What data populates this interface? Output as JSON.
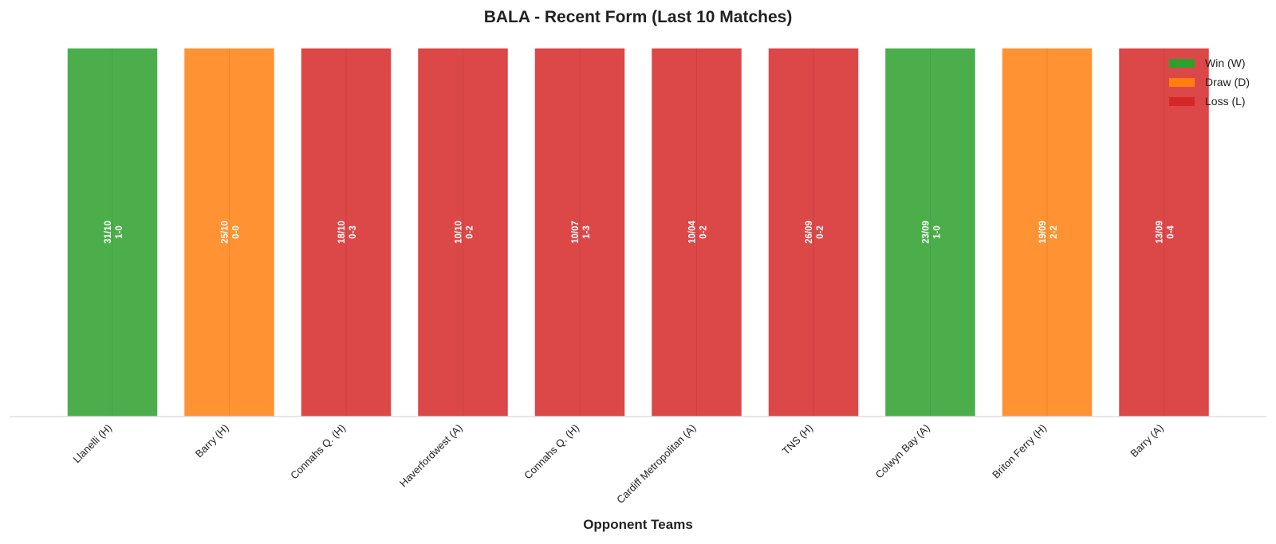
{
  "chart_data": {
    "type": "bar",
    "title": "BALA - Recent Form (Last 10 Matches)",
    "xlabel": "Opponent Teams",
    "ylabel": "",
    "ylim": [
      0,
      1
    ],
    "grid": false,
    "legend_position": "top-right",
    "categories": [
      "Llanelli (H)",
      "Barry (H)",
      "Connahs Q. (H)",
      "Haverfordwest (A)",
      "Connahs Q. (H)",
      "Cardiff Metropolitan (A)",
      "TNS (H)",
      "Colwyn Bay (A)",
      "Briton Ferry (H)",
      "Barry (A)"
    ],
    "values": [
      1,
      1,
      1,
      1,
      1,
      1,
      1,
      1,
      1,
      1
    ],
    "results": [
      "W",
      "D",
      "L",
      "L",
      "L",
      "L",
      "L",
      "W",
      "D",
      "L"
    ],
    "dates": [
      "31/10",
      "25/10",
      "18/10",
      "10/10",
      "10/07",
      "10/04",
      "26/09",
      "23/09",
      "19/09",
      "13/09"
    ],
    "scores": [
      "1-0",
      "0-0",
      "0-3",
      "0-2",
      "1-3",
      "0-2",
      "0-2",
      "1-0",
      "2-2",
      "0-4"
    ],
    "legend": [
      {
        "key": "W",
        "label": "Win (W)",
        "color": "#2ca02c"
      },
      {
        "key": "D",
        "label": "Draw (D)",
        "color": "#ff7f0e"
      },
      {
        "key": "L",
        "label": "Loss (L)",
        "color": "#d62728"
      }
    ]
  }
}
